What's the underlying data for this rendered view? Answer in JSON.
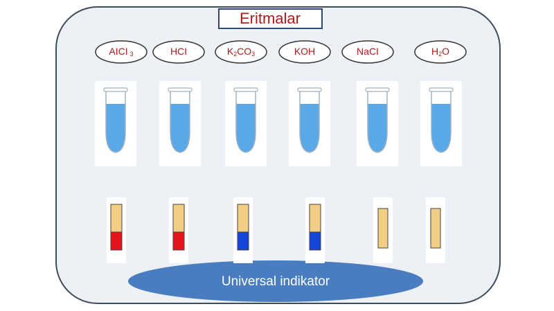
{
  "title": "Eritmalar",
  "indicator": "Universal indikator",
  "solutions": [
    {
      "label": [
        {
          "text": "AICI"
        },
        {
          "text": "3",
          "sub": true
        }
      ],
      "strip_color": "#e8141b"
    },
    {
      "label": [
        {
          "text": "HCI"
        }
      ],
      "strip_color": "#e8141b"
    },
    {
      "label": [
        {
          "text": "K"
        },
        {
          "text": "2",
          "sub": true
        },
        {
          "text": "CO"
        },
        {
          "text": "3",
          "sub": true
        }
      ],
      "strip_color": "#1446d8"
    },
    {
      "label": [
        {
          "text": "KOH"
        }
      ],
      "strip_color": "#1446d8"
    },
    {
      "label": [
        {
          "text": "NaCI"
        }
      ],
      "strip_color": null
    },
    {
      "label": [
        {
          "text": "H"
        },
        {
          "text": "2",
          "sub": true
        },
        {
          "text": "O"
        }
      ],
      "strip_color": null
    }
  ]
}
